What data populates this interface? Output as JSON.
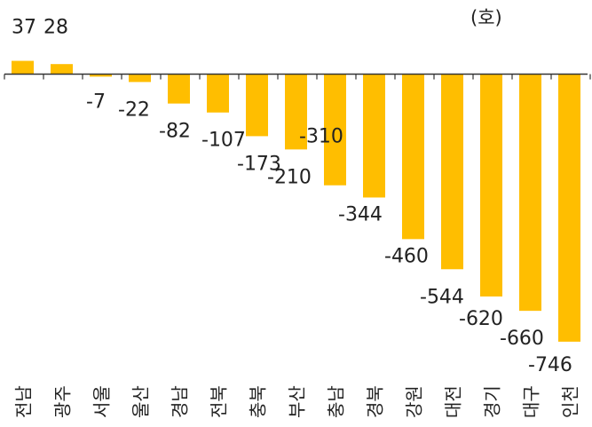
{
  "chart_data": {
    "type": "bar",
    "unit_label": "(호)",
    "categories": [
      "전남",
      "광주",
      "서울",
      "울산",
      "경남",
      "전북",
      "충북",
      "부산",
      "충남",
      "경북",
      "강원",
      "대전",
      "경기",
      "대구",
      "인천"
    ],
    "values": [
      37,
      28,
      -7,
      -22,
      -82,
      -107,
      -173,
      -210,
      -310,
      -344,
      -460,
      -544,
      -620,
      -660,
      -746
    ],
    "value_labels": [
      "37",
      "28",
      "-7",
      "-22",
      "-82",
      "-107",
      "-173",
      "-210",
      "-310",
      "-344",
      "-460",
      "-544",
      "-620",
      "-660",
      "-746"
    ],
    "ylim": [
      -760,
      60
    ],
    "colors": {
      "bar": "#FFBE00",
      "axis": "#333333",
      "text": "#222222"
    }
  }
}
